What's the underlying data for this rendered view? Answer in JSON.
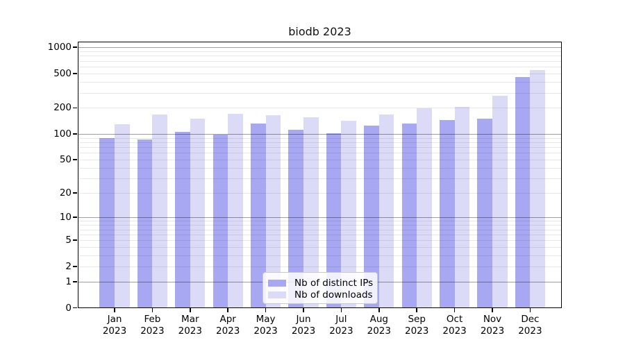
{
  "chart_data": {
    "type": "bar",
    "title": "biodb 2023",
    "xlabel": "",
    "ylabel": "",
    "year": "2023",
    "categories": [
      "Jan",
      "Feb",
      "Mar",
      "Apr",
      "May",
      "Jun",
      "Jul",
      "Aug",
      "Sep",
      "Oct",
      "Nov",
      "Dec"
    ],
    "series": [
      {
        "name": "Nb of distinct IPs",
        "color": "#a8a8f2",
        "values": [
          90,
          86,
          105,
          97,
          131,
          111,
          101,
          124,
          133,
          144,
          151,
          456
        ]
      },
      {
        "name": "Nb of downloads",
        "color": "#dbdbf8",
        "values": [
          130,
          168,
          150,
          170,
          166,
          156,
          143,
          167,
          198,
          207,
          277,
          546
        ]
      }
    ],
    "y_axis": {
      "scale": "log1p",
      "tick_labels": [
        0,
        1,
        2,
        5,
        10,
        20,
        50,
        100,
        200,
        500,
        1000
      ],
      "major_gridlines": [
        1,
        10,
        100,
        1000
      ],
      "minor_gridlines": [
        2,
        3,
        4,
        5,
        6,
        7,
        8,
        9,
        20,
        30,
        40,
        50,
        60,
        70,
        80,
        90,
        200,
        300,
        400,
        500,
        600,
        700,
        800,
        900
      ],
      "ylim": [
        0,
        1160
      ],
      "grid": "on"
    },
    "legend": {
      "position": "bottom-center"
    }
  }
}
